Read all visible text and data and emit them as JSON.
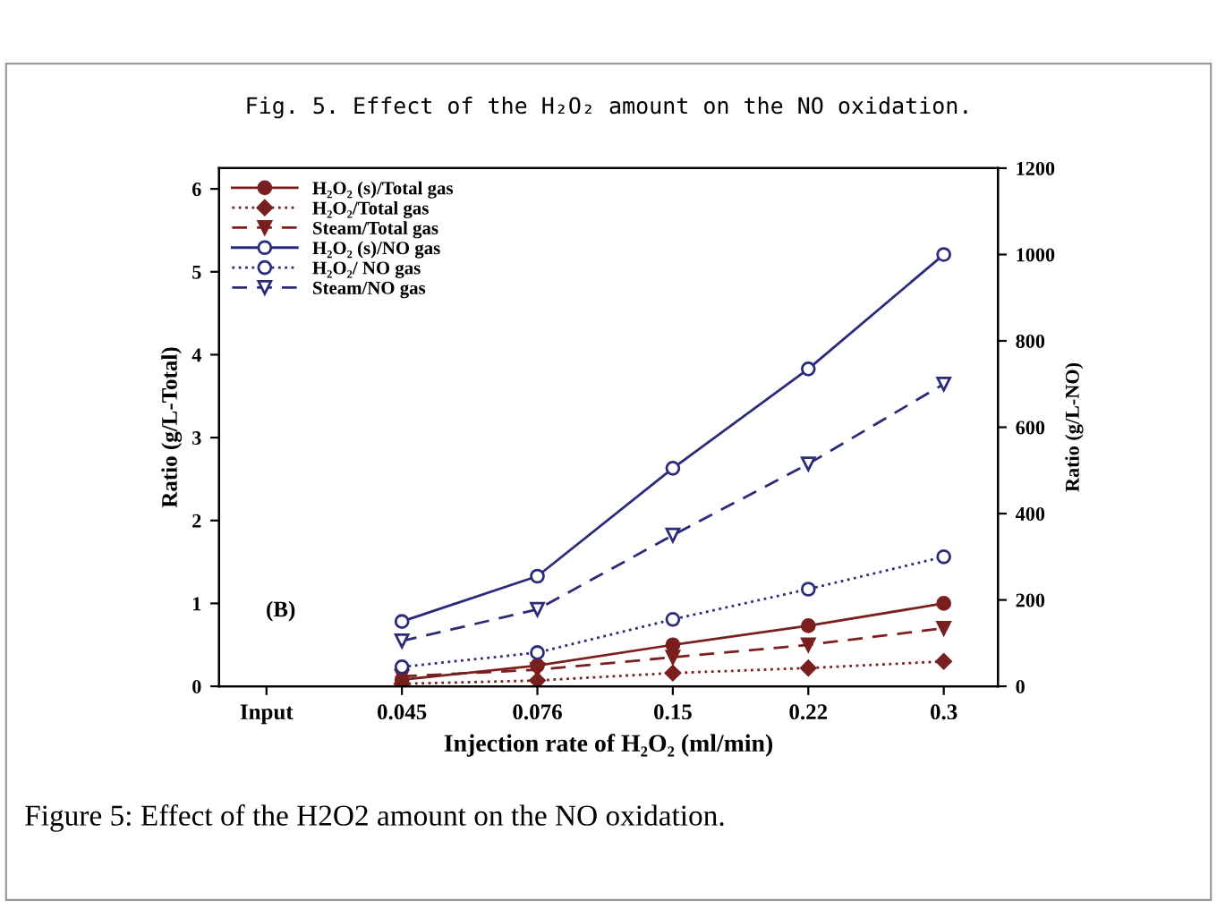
{
  "chart_data": {
    "type": "line",
    "title": "Fig. 5. Effect of the H₂O₂ amount on the NO oxidation.",
    "xlabel": "Injection rate of H₂O₂ (ml/min)",
    "ylabel": "Ratio (g/L-Total)",
    "y2label": "Ratio (g/L-NO)",
    "categories": [
      "Input",
      "0.045",
      "0.076",
      "0.15",
      "0.22",
      "0.3"
    ],
    "series": [
      {
        "name": "H₂O₂ (s)/Total gas",
        "color": "#7a1f1f",
        "marker": "circle",
        "line_style": "solid",
        "values": [
          null,
          0.08,
          0.25,
          0.5,
          0.73,
          1.0
        ]
      },
      {
        "name": "H₂O₂/Total gas",
        "color": "#7a1f1f",
        "marker": "diamond",
        "line_style": "dotted",
        "values": [
          null,
          0.03,
          0.07,
          0.16,
          0.22,
          0.3
        ]
      },
      {
        "name": "Steam/Total gas",
        "color": "#7a1f1f",
        "marker": "triangle",
        "line_style": "dashed",
        "values": [
          null,
          0.12,
          0.2,
          0.35,
          0.5,
          0.7
        ]
      },
      {
        "name": "H₂O₂ (s)/NO gas",
        "color": "#2b2b7a",
        "marker": "circle",
        "line_style": "solid",
        "axis": "y2",
        "values": [
          null,
          150,
          255,
          505,
          735,
          1000
        ]
      },
      {
        "name": "H₂O₂/ NO gas",
        "color": "#2b2b7a",
        "marker": "circle",
        "line_style": "dotted",
        "axis": "y2",
        "values": [
          null,
          45,
          78,
          155,
          225,
          300
        ]
      },
      {
        "name": "Steam/NO gas",
        "color": "#2b2b7a",
        "marker": "triangle_down",
        "line_style": "dashed",
        "axis": "y2",
        "values": [
          null,
          105,
          178,
          350,
          515,
          700
        ]
      }
    ],
    "ylim": [
      0,
      6.25
    ],
    "yticks": [
      0,
      1,
      2,
      3,
      4,
      5,
      6
    ],
    "y2lim": [
      0,
      1200
    ],
    "y2ticks": [
      0,
      200,
      400,
      600,
      800,
      1000,
      1200
    ],
    "grid": false,
    "legend": "top left",
    "annotations": [
      "(B)",
      "Figure 5: Effect of the H2O2 amount on the NO oxidation."
    ]
  }
}
